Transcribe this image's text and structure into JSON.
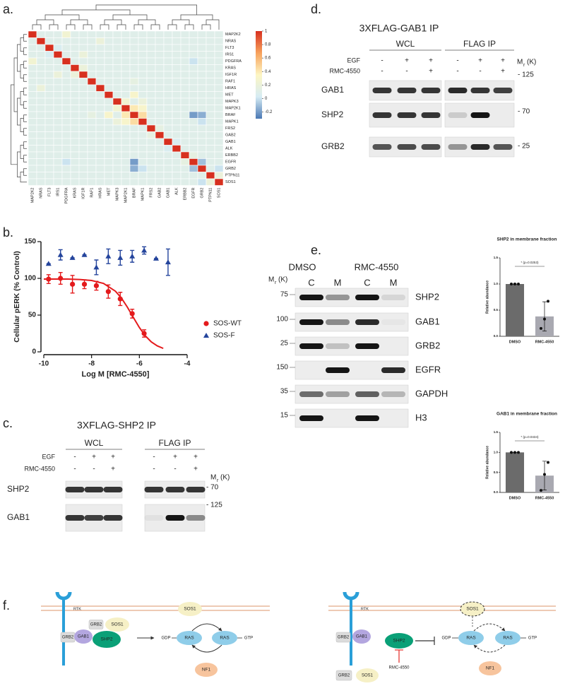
{
  "panel_labels": [
    "a.",
    "b.",
    "c.",
    "d.",
    "e.",
    "f."
  ],
  "chart_data": [
    {
      "type": "heatmap",
      "rows": [
        "MAP2K2",
        "NRAS",
        "FLT3",
        "IRS1",
        "PDGFRA",
        "KRAS",
        "IGF1R",
        "RAF1",
        "HRAS",
        "MET",
        "MAPK3",
        "MAP2K1",
        "BRAF",
        "MAPK1",
        "FRS2",
        "GAB2",
        "GAB1",
        "ALK",
        "ERBB2",
        "EGFR",
        "GRB2",
        "PTPN11",
        "SOS1"
      ],
      "columns": [
        "MAP2K2",
        "NRAS",
        "FLT3",
        "IRS1",
        "PDGFRA",
        "KRAS",
        "IGF1R",
        "RAF1",
        "HRAS",
        "MET",
        "MAPK3",
        "MAP2K1",
        "BRAF",
        "MAPK1",
        "FRS2",
        "GAB2",
        "GAB1",
        "ALK",
        "ERBB2",
        "EGFR",
        "GRB2",
        "PTPN11",
        "SOS1"
      ],
      "values": [
        [
          1,
          0.1,
          0.1,
          0.1,
          0.25,
          0.1,
          0.1,
          0.1,
          0.1,
          0.1,
          0.1,
          0.1,
          0.1,
          0.1,
          0.1,
          0.1,
          0.1,
          0.1,
          0.1,
          0.1,
          0.1,
          0.1,
          0.1
        ],
        [
          0.1,
          1,
          0.1,
          0.1,
          0.1,
          0.1,
          0.1,
          0.1,
          0.2,
          0.1,
          0.1,
          0.1,
          0.1,
          0.1,
          0.1,
          0.1,
          0.1,
          0.1,
          0.1,
          0.1,
          0.1,
          0.1,
          0.1
        ],
        [
          0.1,
          0.1,
          1,
          0.05,
          0.1,
          0.1,
          0.1,
          0.1,
          0.1,
          0.1,
          0.1,
          0.1,
          0.1,
          0.1,
          0.1,
          0.1,
          0.1,
          0.1,
          0.1,
          0.1,
          0.1,
          0.1,
          0.1
        ],
        [
          0.1,
          0.1,
          0.05,
          1,
          0.1,
          0.1,
          0.2,
          0.1,
          0.1,
          0.1,
          0.1,
          0.1,
          0.1,
          0.1,
          0.1,
          0.1,
          0.1,
          0.1,
          0.1,
          0.1,
          0.1,
          0.1,
          0.1
        ],
        [
          0.25,
          0.1,
          0.1,
          0.1,
          1,
          0.1,
          0.1,
          0.1,
          0.1,
          0.1,
          0.1,
          0.1,
          0.1,
          0.1,
          0.1,
          0.1,
          0.1,
          0.1,
          0.1,
          0,
          0.1,
          0.1,
          0.1
        ],
        [
          0.1,
          0.1,
          0.1,
          0.1,
          0.1,
          1,
          0.2,
          0.1,
          0.1,
          0.1,
          0.1,
          0.1,
          0.1,
          0.1,
          0.1,
          0.1,
          0.1,
          0.1,
          0.1,
          0.1,
          0.1,
          0.1,
          0.1
        ],
        [
          0.1,
          0.1,
          0.1,
          0.2,
          0.1,
          0.2,
          1,
          0.1,
          0.1,
          0.1,
          0.1,
          0.1,
          0.1,
          0.1,
          0.1,
          0.1,
          0.1,
          0.1,
          0.1,
          0.1,
          0.1,
          0.1,
          0.1
        ],
        [
          0.1,
          0.1,
          0.1,
          0.1,
          0.1,
          0.1,
          0.1,
          1,
          0.1,
          0.1,
          0.1,
          0.1,
          0.15,
          0.1,
          0.1,
          0.1,
          0.1,
          0.1,
          0.1,
          0.1,
          0.1,
          0.1,
          0.1
        ],
        [
          0.1,
          0.2,
          0.1,
          0.1,
          0.1,
          0.1,
          0.1,
          0.1,
          1,
          0.1,
          0.1,
          0.1,
          0.1,
          0.1,
          0.1,
          0.1,
          0.1,
          0.1,
          0.1,
          0.1,
          0.1,
          0.1,
          0.1
        ],
        [
          0.1,
          0.1,
          0.1,
          0.1,
          0.1,
          0.1,
          0.1,
          0.1,
          0.1,
          1,
          0.1,
          0.1,
          0.3,
          0.1,
          0.1,
          0.1,
          0.1,
          0.1,
          0.1,
          0.1,
          0.1,
          0.1,
          0.1
        ],
        [
          0.1,
          0.1,
          0.1,
          0.1,
          0.1,
          0.1,
          0.1,
          0.1,
          0.1,
          0.1,
          1,
          0.25,
          0.1,
          0.2,
          0.1,
          0.1,
          0.1,
          0.1,
          0.1,
          0.1,
          0.1,
          0.1,
          0.1
        ],
        [
          0.1,
          0.1,
          0.1,
          0.1,
          0.1,
          0.1,
          0.1,
          0.1,
          0.1,
          0.1,
          0.25,
          1,
          0.4,
          0.3,
          0.1,
          0.1,
          0.1,
          0.1,
          0.1,
          0.1,
          0.1,
          0.1,
          0.1
        ],
        [
          0.1,
          0.1,
          0.1,
          0.1,
          0.1,
          0.1,
          0.1,
          0.15,
          0.1,
          0.3,
          0.1,
          0.4,
          1,
          0.45,
          0.1,
          0.1,
          0.1,
          0.1,
          0.1,
          -0.2,
          -0.15,
          0.1,
          0.1
        ],
        [
          0.1,
          0.1,
          0.1,
          0.1,
          0.1,
          0.1,
          0.1,
          0.1,
          0.1,
          0.1,
          0.2,
          0.3,
          0.45,
          1,
          0.1,
          0.1,
          0.1,
          0.1,
          0.1,
          0.1,
          0,
          0.1,
          0.1
        ],
        [
          0.1,
          0.1,
          0.1,
          0.1,
          0.1,
          0.1,
          0.1,
          0.1,
          0.1,
          0.1,
          0.1,
          0.1,
          0.1,
          0.1,
          1,
          0.15,
          0.1,
          0.1,
          0.1,
          0.1,
          0.1,
          0.1,
          0.1
        ],
        [
          0.1,
          0.1,
          0.1,
          0.1,
          0.1,
          0.1,
          0.1,
          0.1,
          0.1,
          0.1,
          0.1,
          0.1,
          0.1,
          0.1,
          0.15,
          1,
          0.1,
          0.1,
          0.1,
          0.1,
          0.1,
          0.1,
          0.1
        ],
        [
          0.1,
          0.1,
          0.1,
          0.1,
          0.1,
          0.1,
          0.1,
          0.1,
          0.1,
          0.1,
          0.1,
          0.1,
          0.1,
          0.1,
          0.1,
          0.1,
          1,
          0.05,
          0.1,
          0.1,
          0.1,
          0.1,
          0.1
        ],
        [
          0.1,
          0.1,
          0.1,
          0.1,
          0.1,
          0.1,
          0.1,
          0.1,
          0.1,
          0.1,
          0.1,
          0.1,
          0.1,
          0.1,
          0.1,
          0.1,
          0.05,
          1,
          0.1,
          0.1,
          0.1,
          0.1,
          0.1
        ],
        [
          0.1,
          0.1,
          0.1,
          0.1,
          0.1,
          0.1,
          0.1,
          0.1,
          0.1,
          0.1,
          0.1,
          0.1,
          0.1,
          0.1,
          0.1,
          0.1,
          0.1,
          0.1,
          1,
          0.15,
          0.1,
          0.1,
          0.1
        ],
        [
          0.1,
          0.1,
          0.1,
          0.1,
          0,
          0.1,
          0.1,
          0.1,
          0.1,
          0.1,
          0.1,
          0.1,
          -0.2,
          0.1,
          0.1,
          0.1,
          0.1,
          0.1,
          0.15,
          1,
          -0.1,
          0.1,
          0.1
        ],
        [
          0.1,
          0.1,
          0.1,
          0.1,
          0.1,
          0.1,
          0.1,
          0.1,
          0.1,
          0.1,
          0.1,
          0.1,
          -0.15,
          0,
          0.1,
          0.1,
          0.1,
          0.1,
          0.1,
          -0.1,
          1,
          0.1,
          0
        ],
        [
          0.1,
          0.1,
          0.1,
          0.1,
          0.1,
          0.1,
          0.1,
          0.1,
          0.1,
          0.1,
          0.1,
          0.1,
          0.1,
          0.1,
          0.1,
          0.1,
          0.1,
          0.1,
          0.1,
          0.1,
          0.1,
          1,
          0.2
        ],
        [
          0.1,
          0.1,
          0.1,
          0.1,
          0.1,
          0.1,
          0.1,
          0.1,
          0.1,
          0.1,
          0.1,
          0.1,
          0.1,
          0.1,
          0.1,
          0.1,
          0.1,
          0.1,
          0.1,
          0.1,
          0,
          0.2,
          1
        ]
      ],
      "zlim": [
        -0.3,
        1
      ],
      "zticks": [
        1,
        0.8,
        0.6,
        0.4,
        0.2,
        0,
        -0.2
      ],
      "colormap": [
        "#4a78b4",
        "#d6ecf4",
        "#fdf6c3",
        "#f7a25c",
        "#d7301f"
      ]
    },
    {
      "type": "scatter",
      "xlabel": "Log M [RMC-4550]",
      "ylabel": "Cellular pERK (% Control)",
      "xlim": [
        -10,
        -4
      ],
      "xticks": [
        -10,
        -8,
        -6,
        -4
      ],
      "ylim": [
        0,
        150
      ],
      "yticks": [
        0,
        50,
        100,
        150
      ],
      "legend": "right",
      "series": [
        {
          "name": "SOS-WT",
          "color": "#e41a1c",
          "marker": "circle",
          "x": [
            -9.8,
            -9.3,
            -8.8,
            -8.3,
            -7.8,
            -7.3,
            -6.8,
            -6.3,
            -5.8
          ],
          "values": [
            99,
            100,
            92,
            92,
            90,
            82,
            72,
            52,
            25
          ],
          "errors": [
            6,
            8,
            12,
            6,
            6,
            9,
            9,
            6,
            5
          ],
          "fit": {
            "x": [
              -10,
              -9,
              -8.5,
              -8,
              -7.5,
              -7,
              -6.75,
              -6.5,
              -6.25,
              -6,
              -5.75,
              -5.5,
              -5.25,
              -5
            ],
            "values": [
              99,
              99,
              98.4,
              97.1,
              93.1,
              82.5,
              73.1,
              60.7,
              46.7,
              33.1,
              21.8,
              13.5,
              8.1,
              4.7
            ]
          }
        },
        {
          "name": "SOS-F",
          "color": "#24449c",
          "marker": "triangle",
          "x": [
            -9.8,
            -9.3,
            -8.8,
            -8.3,
            -7.8,
            -7.3,
            -6.8,
            -6.3,
            -5.8,
            -5.3,
            -4.8
          ],
          "values": [
            120,
            132,
            128,
            132,
            115,
            130,
            128,
            130,
            138,
            127,
            122
          ],
          "errors": [
            0,
            7,
            0,
            0,
            10,
            10,
            10,
            8,
            5,
            0,
            18
          ]
        }
      ]
    },
    {
      "type": "bar",
      "title": "SHP2 in membrane fraction",
      "ylabel": "Relative abundance",
      "categories": [
        "DMSO",
        "RMC-4550"
      ],
      "values": [
        1,
        0.38
      ],
      "errors": [
        0,
        0.28
      ],
      "points": [
        [
          1,
          1,
          1
        ],
        [
          0.15,
          0.33,
          0.67
        ]
      ],
      "colors": [
        "#6b6b6b",
        "#a9a9b1"
      ],
      "ylim": [
        0,
        1.5
      ],
      "yticks": [
        {
          "value": 0,
          "label": "0.0"
        },
        {
          "value": 0.5,
          "label": "0.5"
        },
        {
          "value": 1,
          "label": "1.0"
        },
        {
          "value": 1.5,
          "label": "1.5"
        }
      ],
      "annotation": "* (p=0.0253)"
    },
    {
      "type": "bar",
      "title": "GAB1 in membrane fraction",
      "ylabel": "Relative abundance",
      "categories": [
        "DMSO",
        "RMC-4550"
      ],
      "values": [
        1,
        0.42
      ],
      "errors": [
        0,
        0.36
      ],
      "points": [
        [
          1,
          1,
          1
        ],
        [
          0.05,
          0.45,
          0.75
        ]
      ],
      "colors": [
        "#6b6b6b",
        "#a9a9b1"
      ],
      "ylim": [
        0,
        1.5
      ],
      "yticks": [
        {
          "value": 0,
          "label": "0.0"
        },
        {
          "value": 0.5,
          "label": "0.5"
        },
        {
          "value": 1,
          "label": "1.0"
        },
        {
          "value": 1.5,
          "label": "1.5"
        }
      ],
      "annotation": "* (p=0.0434)"
    }
  ],
  "blot_c": {
    "title": "3XFLAG-SHP2 IP",
    "groups": [
      "WCL",
      "FLAG IP"
    ],
    "conditions": [
      {
        "name": "EGF",
        "signs": [
          "-",
          "+",
          "+",
          "-",
          "+",
          "+"
        ]
      },
      {
        "name": "RMC-4550",
        "signs": [
          "-",
          "-",
          "+",
          "-",
          "-",
          "+"
        ]
      }
    ],
    "mr": "M",
    "mr_sub": "r",
    "mr_unit": "(K)",
    "rows": [
      {
        "name": "SHP2",
        "marker": "- 70"
      },
      {
        "name": "GAB1",
        "marker": "- 125"
      }
    ]
  },
  "blot_d": {
    "title": "3XFLAG-GAB1 IP",
    "groups": [
      "WCL",
      "FLAG IP"
    ],
    "conditions": [
      {
        "name": "EGF",
        "signs": [
          "-",
          "+",
          "+",
          "-",
          "+",
          "+"
        ]
      },
      {
        "name": "RMC-4550",
        "signs": [
          "-",
          "-",
          "+",
          "-",
          "-",
          "+"
        ]
      }
    ],
    "mr": "M",
    "mr_sub": "r",
    "mr_unit": "(K)",
    "rows": [
      {
        "name": "GAB1",
        "marker": "- 125"
      },
      {
        "name": "SHP2",
        "marker": "- 70"
      },
      {
        "name": "GRB2",
        "marker": "- 25"
      }
    ]
  },
  "blot_e": {
    "groups": [
      "DMSO",
      "RMC-4550"
    ],
    "lanes": [
      "C",
      "M",
      "C",
      "M"
    ],
    "mr": "M",
    "mr_sub": "r",
    "mr_unit": "(K)",
    "rows": [
      {
        "name": "SHP2",
        "marker": "75"
      },
      {
        "name": "GAB1",
        "marker": "100"
      },
      {
        "name": "GRB2",
        "marker": "25"
      },
      {
        "name": "EGFR",
        "marker": "150"
      },
      {
        "name": "GAPDH",
        "marker": "35"
      },
      {
        "name": "H3",
        "marker": "15"
      }
    ]
  },
  "diagram_f": {
    "left": [
      "RTK",
      "GRB2",
      "GAB1",
      "GRB2",
      "SOS1",
      "SHP2",
      "SOS1",
      "GDP",
      "RAS",
      "RAS",
      "GTP",
      "NF1"
    ],
    "right": [
      "RTK",
      "GRB2",
      "GAB1",
      "SHP2",
      "SOS1",
      "GDP",
      "RAS",
      "RAS",
      "GTP",
      "NF1",
      "RMC-4550",
      "GRB2",
      "SOS1"
    ]
  }
}
